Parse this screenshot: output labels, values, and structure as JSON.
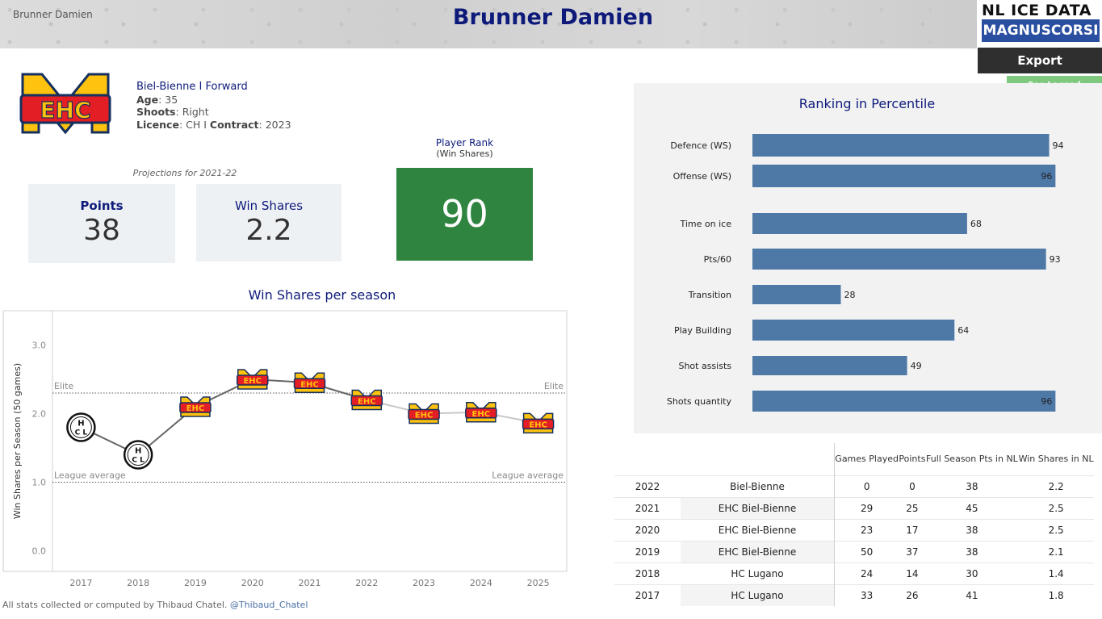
{
  "banner": {
    "small_name": "Brunner Damien",
    "title": "Brunner Damien"
  },
  "brand": {
    "line1": "NL ICE DATA",
    "line2": "MAGNUSCORSI"
  },
  "buttons": {
    "export": "Export",
    "legend": "See Legend"
  },
  "player": {
    "team_position": "Biel-Bienne  I  Forward",
    "age_label": "Age",
    "age": "35",
    "shoots_label": "Shoots",
    "shoots": "Right",
    "licence_label": "Licence",
    "licence": "CH",
    "contract_label": "Contract",
    "contract": "2023",
    "team_logo_text": "EHC"
  },
  "projections": {
    "label": "Projections for 2021-22",
    "points_label": "Points",
    "points": "38",
    "ws_label": "Win Shares",
    "ws": "2.2"
  },
  "rank": {
    "label": "Player Rank",
    "sublabel": "(Win Shares)",
    "value": "90"
  },
  "colors": {
    "navy": "#0d1a7a",
    "bar": "#4e79a7",
    "rank_green": "#2f8540",
    "kpi_bg": "#eef1f4"
  },
  "chart_data": [
    {
      "type": "line",
      "title": "Win Shares per season",
      "ylabel": "Win Shares per Season (50 games)",
      "ylim": [
        -0.3,
        3.5
      ],
      "yticks": [
        "0.0",
        "1.0",
        "2.0",
        "3.0"
      ],
      "x": [
        "2017",
        "2018",
        "2019",
        "2020",
        "2021",
        "2022",
        "2023",
        "2024",
        "2025"
      ],
      "series": [
        {
          "values": [
            1.8,
            1.4,
            2.1,
            2.5,
            2.45,
            2.2,
            2.0,
            2.02,
            1.86
          ],
          "teams": [
            "HCL",
            "HCL",
            "EHC",
            "EHC",
            "EHC",
            "EHC",
            "EHC",
            "EHC",
            "EHC"
          ]
        }
      ],
      "reference_lines": [
        {
          "label": "Elite",
          "value": 2.3
        },
        {
          "label": "League average",
          "value": 1.0
        }
      ],
      "marker_labels": {
        "EHC": "EHC",
        "HCL_top": "H",
        "HCL_mid": "C L"
      }
    },
    {
      "type": "bar",
      "orientation": "horizontal",
      "title": "Ranking in Percentile",
      "categories": [
        "Defence (WS)",
        "Offense (WS)",
        "Time on ice",
        "Pts/60",
        "Transition",
        "Play Building",
        "Shot assists",
        "Shots quantity"
      ],
      "values": [
        94,
        96,
        68,
        93,
        28,
        64,
        49,
        96
      ],
      "xlim": [
        0,
        100
      ]
    }
  ],
  "table": {
    "headers": [
      "Games Played",
      "Points",
      "Full Season Pts in NL",
      "Win Shares in NL"
    ],
    "rows": [
      {
        "year": "2022",
        "team": "Biel-Bienne",
        "gp": "0",
        "pts": "0",
        "fs": "38",
        "ws": "2.2"
      },
      {
        "year": "2021",
        "team": "EHC Biel-Bienne",
        "gp": "29",
        "pts": "25",
        "fs": "45",
        "ws": "2.5"
      },
      {
        "year": "2020",
        "team": "EHC Biel-Bienne",
        "gp": "23",
        "pts": "17",
        "fs": "38",
        "ws": "2.5"
      },
      {
        "year": "2019",
        "team": "EHC Biel-Bienne",
        "gp": "50",
        "pts": "37",
        "fs": "38",
        "ws": "2.1"
      },
      {
        "year": "2018",
        "team": "HC Lugano",
        "gp": "24",
        "pts": "14",
        "fs": "30",
        "ws": "1.4"
      },
      {
        "year": "2017",
        "team": "HC Lugano",
        "gp": "33",
        "pts": "26",
        "fs": "41",
        "ws": "1.8"
      }
    ]
  },
  "footer": {
    "text": "All stats collected or computed by Thibaud Chatel.",
    "handle": "@Thibaud_Chatel"
  }
}
